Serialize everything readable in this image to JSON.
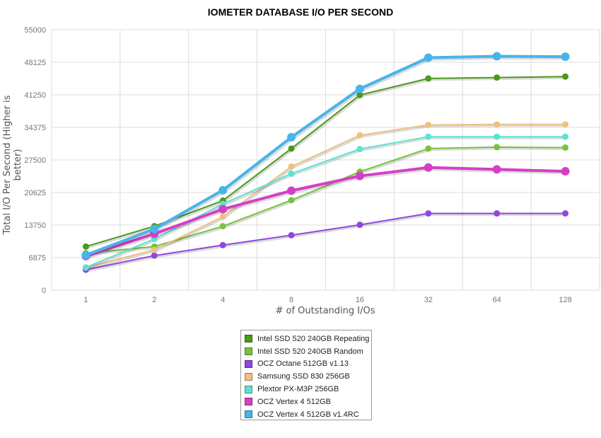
{
  "chart_data": {
    "type": "line",
    "title": "IOMETER DATABASE I/O PER SECOND",
    "xlabel": "# of Outstanding I/Os",
    "ylabel": "Total I/O Per Second (Higher is better)",
    "categories": [
      "1",
      "2",
      "4",
      "8",
      "16",
      "32",
      "64",
      "128"
    ],
    "yticks": [
      "0",
      "6875",
      "13750",
      "20625",
      "27500",
      "34375",
      "41250",
      "48125",
      "55000"
    ],
    "ylim": [
      0,
      55000
    ],
    "grid": true,
    "legend_position": "bottom",
    "series": [
      {
        "name": "Intel SSD 520 240GB Repeating",
        "color": "#4a9a1a",
        "values": [
          9200,
          13500,
          18900,
          29900,
          41200,
          44700,
          44900,
          45100
        ]
      },
      {
        "name": "Intel SSD 520 240GB Random",
        "color": "#78c23c",
        "values": [
          7800,
          9200,
          13500,
          19000,
          25000,
          29900,
          30200,
          30100
        ]
      },
      {
        "name": "OCZ Octane 512GB v1.13",
        "color": "#9047e0",
        "values": [
          4300,
          7300,
          9500,
          11600,
          13800,
          16200,
          16200,
          16200
        ]
      },
      {
        "name": "Samsung SSD 830 256GB",
        "color": "#edc182",
        "values": [
          4800,
          8500,
          15500,
          26100,
          32700,
          34900,
          35000,
          35000
        ]
      },
      {
        "name": "Plextor PX-M3P 256GB",
        "color": "#5be3d0",
        "values": [
          4800,
          10800,
          18200,
          24600,
          29800,
          32400,
          32400,
          32400
        ]
      },
      {
        "name": "OCZ Vertex 4 512GB",
        "color": "#d53fc6",
        "values": [
          7200,
          11900,
          17100,
          21000,
          24100,
          25900,
          25500,
          25100
        ]
      },
      {
        "name": "OCZ Vertex 4 512GB v1.4RC",
        "color": "#47b5ea",
        "values": [
          7400,
          12900,
          21100,
          32300,
          42500,
          49100,
          49400,
          49300
        ]
      }
    ]
  }
}
